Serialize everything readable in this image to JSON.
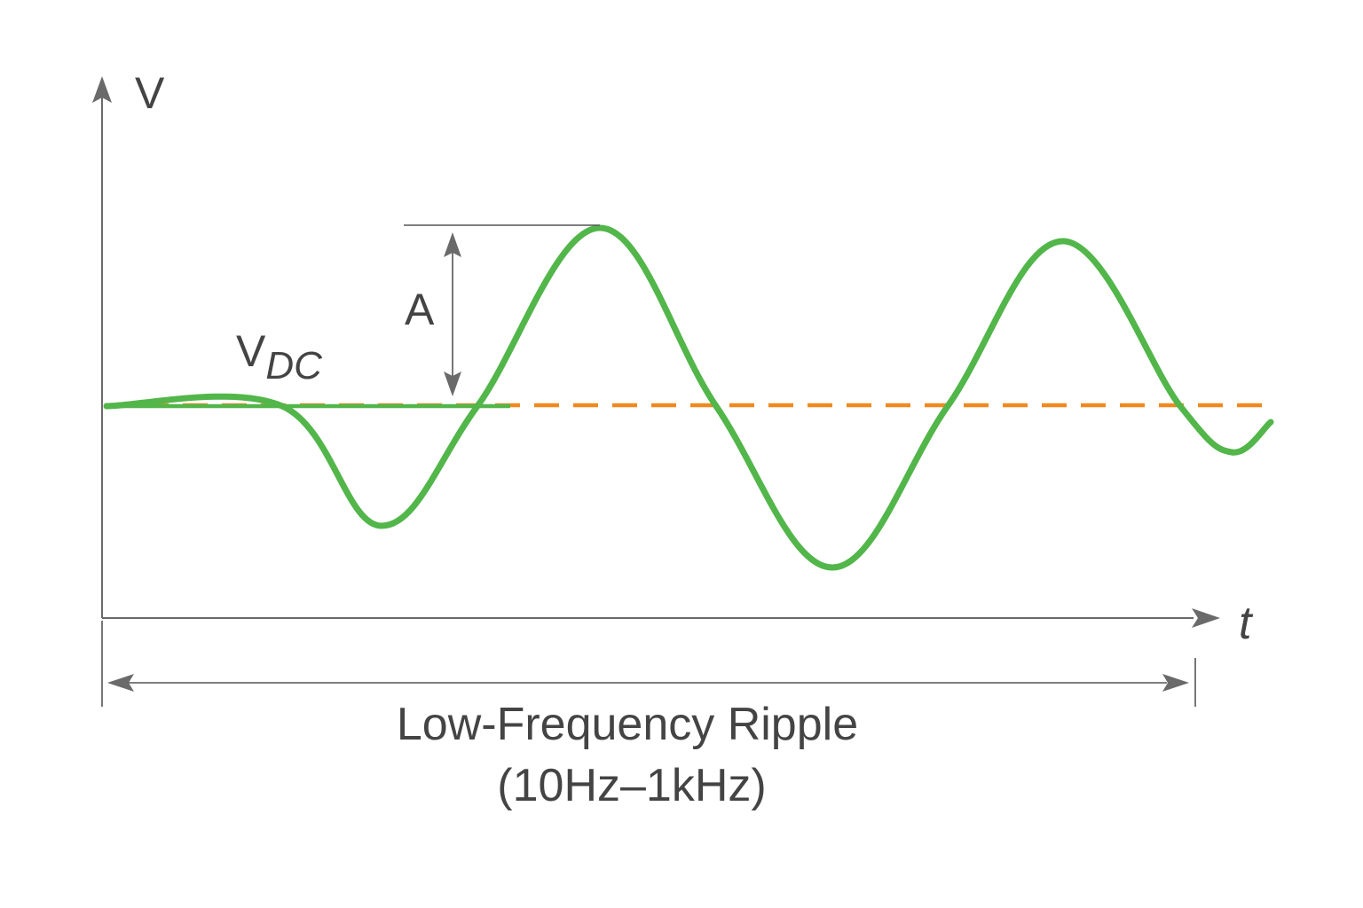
{
  "diagram": {
    "y_axis_label": "V",
    "x_axis_label": "t",
    "amplitude_label": "A",
    "dc_label_main": "V",
    "dc_label_sub": "DC",
    "span_label_line1": "Low-Frequency Ripple",
    "span_label_line2": "(10Hz–1kHz)"
  },
  "colors": {
    "signal": "#52b64a",
    "dc_level": "#f0891f",
    "axes": "#6a6a6a",
    "text": "#444444"
  }
}
